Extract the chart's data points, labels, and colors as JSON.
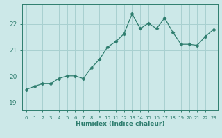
{
  "x": [
    0,
    1,
    2,
    3,
    4,
    5,
    6,
    7,
    8,
    9,
    10,
    11,
    12,
    13,
    14,
    15,
    16,
    17,
    18,
    19,
    20,
    21,
    22,
    23
  ],
  "y": [
    19.5,
    19.62,
    19.72,
    19.72,
    19.92,
    20.02,
    20.02,
    19.92,
    20.32,
    20.65,
    21.12,
    21.32,
    21.62,
    22.38,
    21.82,
    22.02,
    21.82,
    22.22,
    21.68,
    21.22,
    21.22,
    21.18,
    21.52,
    21.78
  ],
  "line_color": "#2e7d6e",
  "marker": "D",
  "marker_size": 2.5,
  "bg_color": "#cce8e8",
  "grid_color": "#a8d0d0",
  "xlabel": "Humidex (Indice chaleur)",
  "yticks": [
    19,
    20,
    21,
    22
  ],
  "xtick_labels": [
    "0",
    "1",
    "2",
    "3",
    "4",
    "5",
    "6",
    "7",
    "8",
    "9",
    "10",
    "11",
    "12",
    "13",
    "14",
    "15",
    "16",
    "17",
    "18",
    "19",
    "20",
    "21",
    "22",
    "23"
  ],
  "ylim": [
    18.7,
    22.75
  ],
  "xlim": [
    -0.5,
    23.5
  ]
}
